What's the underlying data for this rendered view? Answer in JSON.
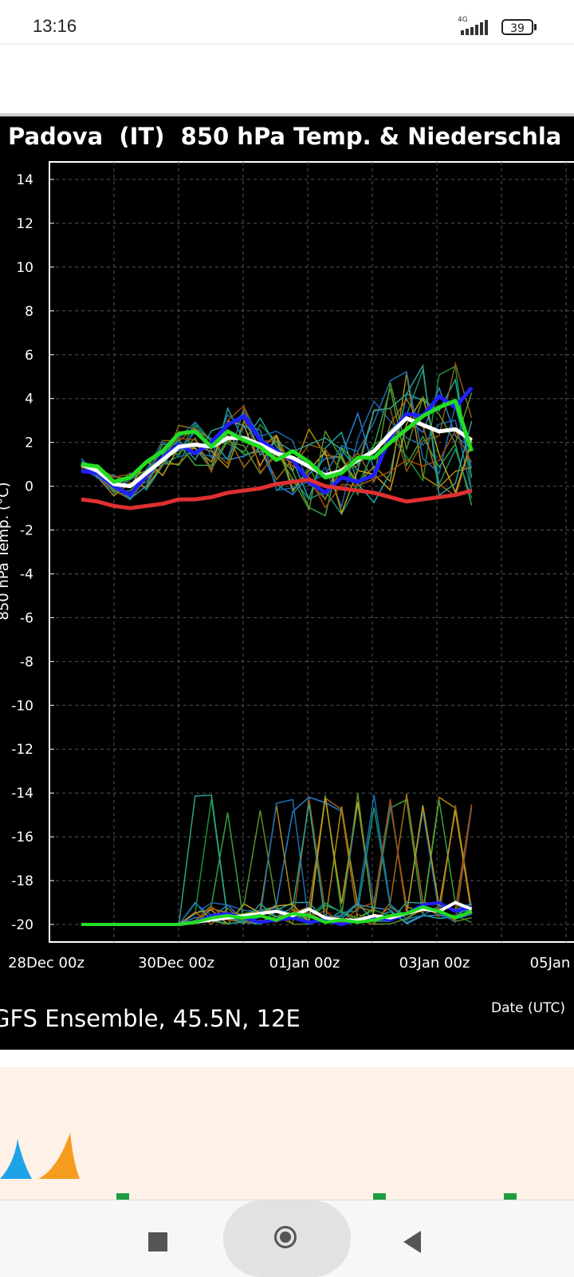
{
  "status_bar": {
    "time": "13:16",
    "network": "4G",
    "battery": "39"
  },
  "chart_header": {
    "title": "Padova  (IT)  850 hPa Temp. & Niederschla"
  },
  "chart_footer": {
    "model_label": "GFS Ensemble, 45.5N, 12E",
    "x_axis_name": "Date (UTC)"
  },
  "y_axis_label": "850 hPa Temp. (°C)",
  "colors": {
    "mean": "#ffffff",
    "control": "#2020ff",
    "operational": "#22dd22",
    "climatology": "#e03030"
  },
  "chart_data": {
    "type": "line",
    "x_tick_labels": [
      "28Dec 00z",
      "30Dec 00z",
      "01Jan 00z",
      "03Jan 00z",
      "05Jan"
    ],
    "y_ticks": [
      14,
      12,
      10,
      8,
      6,
      4,
      2,
      0,
      -2,
      -4,
      -6,
      -8,
      -10,
      -12,
      -14,
      -16,
      -18,
      -20
    ],
    "ylim": [
      -20.8,
      14.8
    ],
    "x_step_hours": 6,
    "grid": true,
    "series": [
      {
        "role": "ensemble-mean",
        "values": [
          1.0,
          0.7,
          0.1,
          0.0,
          0.6,
          1.2,
          1.8,
          1.9,
          1.8,
          2.2,
          2.2,
          1.9,
          1.5,
          1.3,
          0.9,
          0.5,
          0.7,
          1.2,
          1.6,
          2.4,
          3.1,
          2.8,
          2.5,
          2.6,
          2.1
        ],
        "precip": [
          -20,
          -20,
          -20,
          -20,
          -20,
          -20,
          -20,
          -19.9,
          -19.8,
          -19.7,
          -19.6,
          -19.5,
          -19.4,
          -19.6,
          -19.3,
          -19.7,
          -19.8,
          -19.8,
          -19.6,
          -19.7,
          -19.5,
          -19.3,
          -19.4,
          -19.0,
          -19.3
        ]
      },
      {
        "role": "control",
        "values": [
          0.7,
          0.6,
          0.0,
          -0.4,
          0.5,
          1.3,
          1.9,
          1.5,
          2.0,
          2.8,
          3.2,
          2.1,
          1.6,
          1.2,
          0.2,
          -0.3,
          0.4,
          0.2,
          0.5,
          2.3,
          3.3,
          3.2,
          4.1,
          3.6,
          4.5
        ],
        "precip": [
          -20,
          -20,
          -20,
          -20,
          -20,
          -20,
          -20,
          -19.9,
          -19.6,
          -19.5,
          -19.7,
          -19.9,
          -19.8,
          -19.7,
          -19.9,
          -19.8,
          -20,
          -19.8,
          -19.7,
          -19.8,
          -19.5,
          -19.1,
          -19.0,
          -19.4,
          -19.2
        ]
      },
      {
        "role": "operational",
        "values": [
          1.0,
          0.9,
          0.2,
          0.4,
          1.1,
          1.6,
          2.4,
          2.5,
          1.8,
          2.5,
          2.1,
          1.8,
          1.2,
          1.6,
          1.1,
          0.4,
          0.6,
          1.3,
          1.3,
          2.0,
          2.6,
          3.2,
          3.6,
          3.9,
          1.6
        ],
        "precip": [
          -20,
          -20,
          -20,
          -20,
          -20,
          -20,
          -20,
          -19.9,
          -19.7,
          -19.6,
          -19.7,
          -19.6,
          -19.8,
          -19.5,
          -19.6,
          -19.9,
          -19.8,
          -19.9,
          -19.8,
          -19.6,
          -19.5,
          -19.2,
          -19.4,
          -19.7,
          -19.4
        ]
      },
      {
        "role": "climatology",
        "values": [
          -0.6,
          -0.7,
          -0.9,
          -1.0,
          -0.9,
          -0.8,
          -0.6,
          -0.6,
          -0.5,
          -0.3,
          -0.2,
          -0.1,
          0.1,
          0.2,
          0.3,
          0.0,
          -0.1,
          -0.2,
          -0.3,
          -0.5,
          -0.7,
          -0.6,
          -0.5,
          -0.4,
          -0.2
        ]
      }
    ]
  }
}
